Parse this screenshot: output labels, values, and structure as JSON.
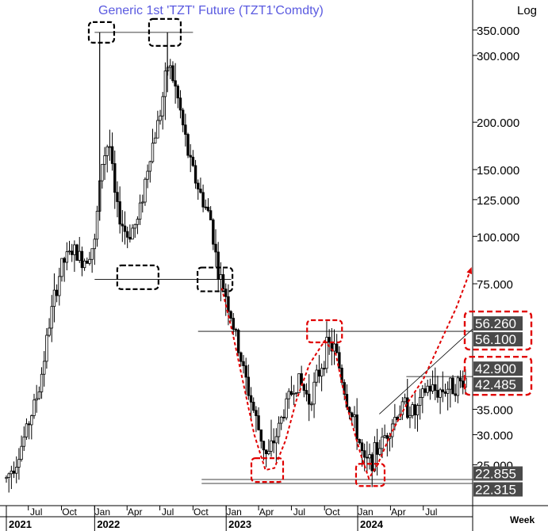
{
  "chart_data": {
    "type": "candlestick",
    "title": "Generic  1st  'TZT'  Future  (TZT1'Comdty)",
    "scale_label": "Log",
    "period_label": "Week",
    "yscale": "log",
    "ylim": [
      19.5,
      420
    ],
    "y_ticks": [
      "350.000",
      "300.000",
      "200.000",
      "150.000",
      "125.000",
      "100.000",
      "75.000",
      "35.000",
      "30.000",
      "25.000"
    ],
    "y_tick_values": [
      350,
      300,
      200,
      150,
      125,
      100,
      75,
      35,
      30,
      25
    ],
    "x_range": [
      "2021-05-01",
      "2024-11-15"
    ],
    "x_ticks": [
      {
        "label": "Jul",
        "date": "2021-07-01"
      },
      {
        "label": "Oct",
        "date": "2021-10-01"
      },
      {
        "label": "Jan",
        "date": "2022-01-01"
      },
      {
        "label": "Apr",
        "date": "2022-04-01"
      },
      {
        "label": "Jul",
        "date": "2022-07-01"
      },
      {
        "label": "Oct",
        "date": "2022-10-01"
      },
      {
        "label": "Jan",
        "date": "2023-01-01"
      },
      {
        "label": "Apr",
        "date": "2023-04-01"
      },
      {
        "label": "Jul",
        "date": "2023-07-01"
      },
      {
        "label": "Oct",
        "date": "2023-10-01"
      },
      {
        "label": "Jan",
        "date": "2024-01-01"
      },
      {
        "label": "Apr",
        "date": "2024-04-01"
      },
      {
        "label": "Jul",
        "date": "2024-07-01"
      }
    ],
    "years": [
      {
        "label": "2021",
        "date": "2021-05-01"
      },
      {
        "label": "2022",
        "date": "2022-01-01"
      },
      {
        "label": "2023",
        "date": "2023-01-01"
      },
      {
        "label": "2024",
        "date": "2024-01-01"
      }
    ],
    "price_labels": [
      {
        "text": "56.260",
        "value": 56.26,
        "color": "#4a4a4a"
      },
      {
        "text": "56.100",
        "value": 56.1,
        "color": "#4a4a4a"
      },
      {
        "text": "42.900",
        "value": 42.9,
        "color": "#4a4a4a"
      },
      {
        "text": "42.485",
        "value": 42.485,
        "color": "#4a4a4a"
      },
      {
        "text": "22.855",
        "value": 22.855,
        "color": "#4a4a4a"
      },
      {
        "text": "22.315",
        "value": 22.315,
        "color": "#4a4a4a"
      }
    ],
    "close_path": [
      [
        "2021-05-01",
        23
      ],
      [
        "2021-06-01",
        26
      ],
      [
        "2021-07-01",
        32
      ],
      [
        "2021-08-01",
        40
      ],
      [
        "2021-09-01",
        62
      ],
      [
        "2021-10-01",
        84
      ],
      [
        "2021-11-01",
        92
      ],
      [
        "2021-12-01",
        86
      ],
      [
        "2022-01-01",
        96
      ],
      [
        "2022-01-20",
        155
      ],
      [
        "2022-02-10",
        180
      ],
      [
        "2022-03-01",
        120
      ],
      [
        "2022-04-01",
        100
      ],
      [
        "2022-05-01",
        110
      ],
      [
        "2022-06-01",
        160
      ],
      [
        "2022-07-01",
        210
      ],
      [
        "2022-07-25",
        290
      ],
      [
        "2022-08-20",
        230
      ],
      [
        "2022-09-20",
        160
      ],
      [
        "2022-10-20",
        130
      ],
      [
        "2022-11-20",
        110
      ],
      [
        "2022-12-10",
        80
      ],
      [
        "2023-01-01",
        70
      ],
      [
        "2023-02-01",
        52
      ],
      [
        "2023-03-01",
        40
      ],
      [
        "2023-04-01",
        31
      ],
      [
        "2023-04-25",
        26
      ],
      [
        "2023-05-20",
        30
      ],
      [
        "2023-06-20",
        37
      ],
      [
        "2023-07-20",
        42
      ],
      [
        "2023-08-20",
        37
      ],
      [
        "2023-09-20",
        45
      ],
      [
        "2023-10-10",
        52
      ],
      [
        "2023-11-01",
        50
      ],
      [
        "2023-12-01",
        37
      ],
      [
        "2024-01-01",
        30
      ],
      [
        "2024-01-20",
        25
      ],
      [
        "2024-02-10",
        26
      ],
      [
        "2024-03-10",
        29
      ],
      [
        "2024-04-10",
        33
      ],
      [
        "2024-05-10",
        36
      ],
      [
        "2024-06-10",
        34
      ],
      [
        "2024-07-10",
        40
      ],
      [
        "2024-08-10",
        39
      ],
      [
        "2024-09-10",
        40
      ],
      [
        "2024-10-10",
        41
      ],
      [
        "2024-10-31",
        42.5
      ]
    ],
    "spikes": [
      {
        "date": "2022-01-15",
        "high": 345,
        "low": 110
      },
      {
        "date": "2022-07-22",
        "high": 345,
        "low": 240
      }
    ],
    "h_lines": [
      {
        "value": 345,
        "from": "2022-01-01",
        "to": "2022-10-01",
        "color": "#000000"
      },
      {
        "value": 77,
        "from": "2022-01-01",
        "to": "2023-01-15",
        "color": "#000000"
      },
      {
        "value": 56.18,
        "from": "2022-10-15",
        "to": "2024-11-15",
        "color": "#000000"
      },
      {
        "value": 42.7,
        "from": "2024-05-15",
        "to": "2024-11-15",
        "color": "#000000"
      },
      {
        "value": 22.855,
        "from": "2022-10-25",
        "to": "2024-11-15",
        "color": "#000000"
      },
      {
        "value": 22.315,
        "from": "2022-10-25",
        "to": "2024-11-15",
        "color": "#000000"
      }
    ],
    "trend_lines": [
      {
        "from": [
          "2024-03-01",
          34
        ],
        "to": [
          "2024-11-15",
          57
        ],
        "color": "#000000"
      }
    ],
    "dashed_arrow_path": [
      [
        "2022-12-20",
        73
      ],
      [
        "2023-01-20",
        55
      ],
      [
        "2023-02-20",
        40
      ],
      [
        "2023-03-20",
        30
      ],
      [
        "2023-04-20",
        24.2
      ],
      [
        "2023-05-15",
        24.5
      ],
      [
        "2023-06-15",
        29
      ],
      [
        "2023-07-15",
        37
      ],
      [
        "2023-08-20",
        46
      ],
      [
        "2023-10-01",
        53
      ],
      [
        "2023-11-01",
        49
      ],
      [
        "2023-12-01",
        36
      ],
      [
        "2024-01-10",
        26.5
      ],
      [
        "2024-02-01",
        23
      ],
      [
        "2024-02-25",
        25
      ],
      [
        "2024-04-01",
        30
      ],
      [
        "2024-05-15",
        36
      ],
      [
        "2024-07-01",
        42
      ],
      [
        "2024-08-15",
        52
      ],
      [
        "2024-10-01",
        65
      ],
      [
        "2024-11-12",
        83
      ]
    ],
    "highlight_boxes": [
      {
        "date": "2022-01-20",
        "value": 345,
        "w": 32,
        "h": 26,
        "color": "#000000"
      },
      {
        "date": "2022-07-15",
        "value": 345,
        "w": 40,
        "h": 34,
        "color": "#000000"
      },
      {
        "date": "2022-05-01",
        "value": 78,
        "w": 52,
        "h": 30,
        "color": "#000000"
      },
      {
        "date": "2022-12-01",
        "value": 77,
        "w": 44,
        "h": 30,
        "color": "#000000"
      },
      {
        "date": "2023-10-01",
        "value": 56.2,
        "w": 44,
        "h": 28,
        "color": "#e00000"
      },
      {
        "date": "2023-04-25",
        "value": 24.2,
        "w": 40,
        "h": 30,
        "color": "#e00000"
      },
      {
        "date": "2024-02-05",
        "value": 23.5,
        "w": 36,
        "h": 28,
        "color": "#e00000"
      }
    ],
    "label_boxes": [
      {
        "from_value": 56.26,
        "to_value": 56.1,
        "color": "#e00000"
      },
      {
        "from_value": 42.9,
        "to_value": 42.485,
        "color": "#e00000"
      }
    ],
    "colors": {
      "candles": "#000000",
      "annotation_red": "#e00000",
      "title": "#5a5ae0",
      "label_bg": "#4a4a4a"
    }
  }
}
